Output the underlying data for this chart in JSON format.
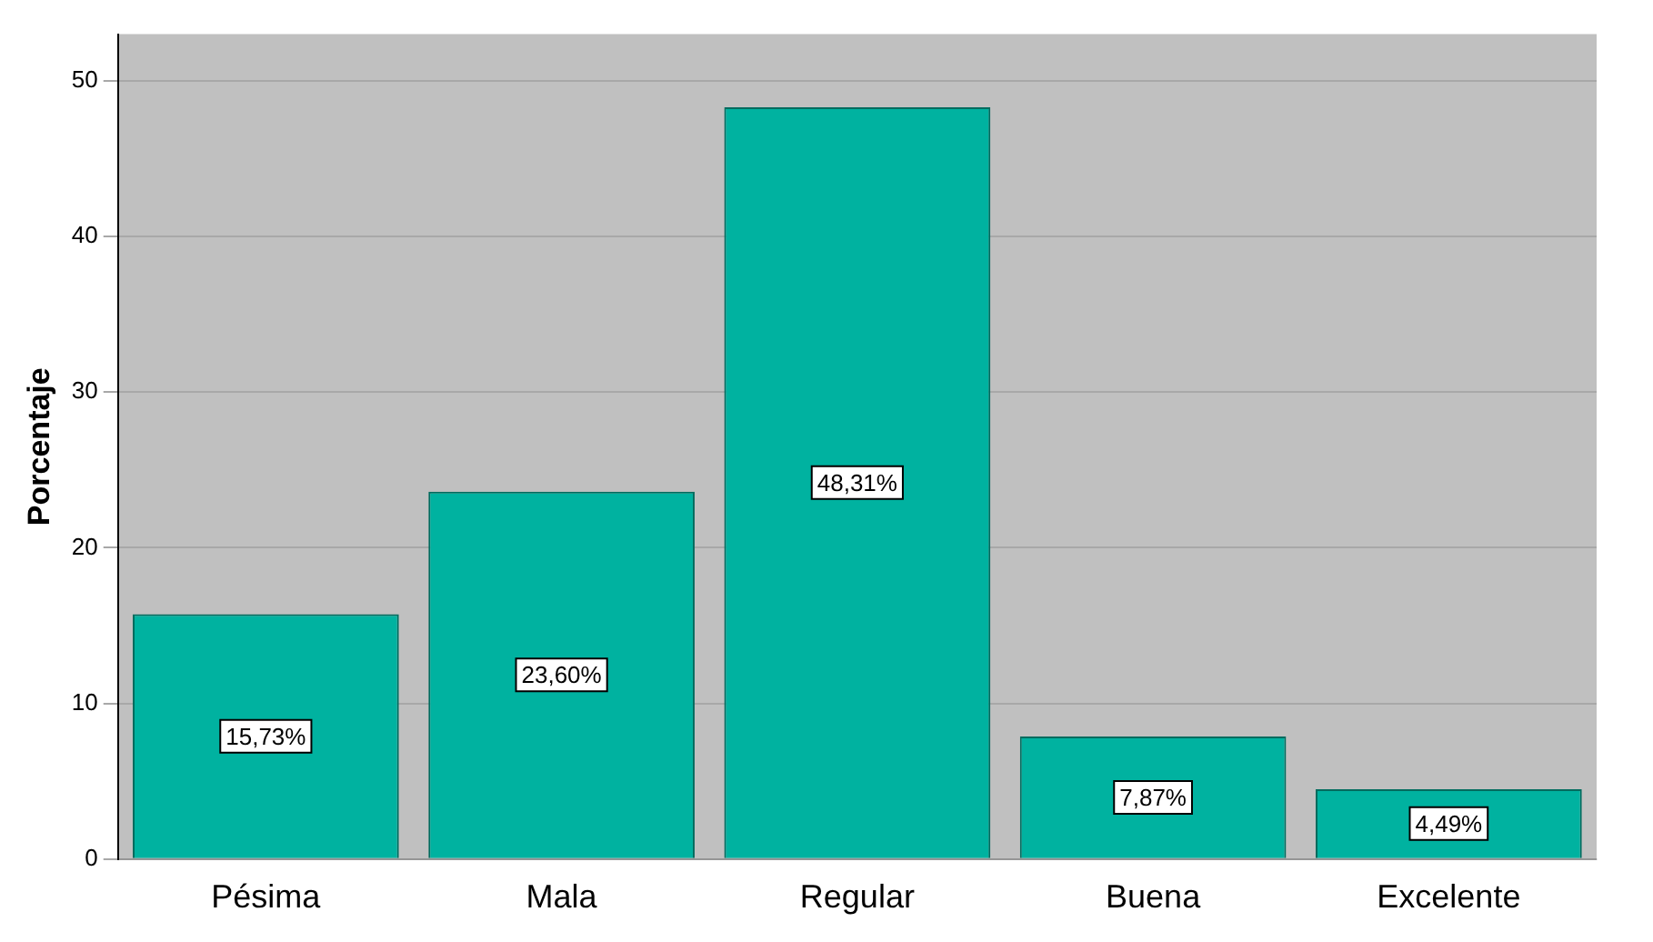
{
  "chart_data": {
    "type": "bar",
    "ylabel": "Porcentaje",
    "categories": [
      "Pésima",
      "Mala",
      "Regular",
      "Buena",
      "Excelente"
    ],
    "values": [
      15.73,
      23.6,
      48.31,
      7.87,
      4.49
    ],
    "value_labels": [
      "15,73%",
      "23,60%",
      "48,31%",
      "7,87%",
      "4,49%"
    ],
    "color": "#00b2a0",
    "ylim": [
      0,
      53
    ],
    "yticks": [
      0,
      10,
      20,
      30,
      40,
      50
    ],
    "grid": "y",
    "legend": false
  }
}
